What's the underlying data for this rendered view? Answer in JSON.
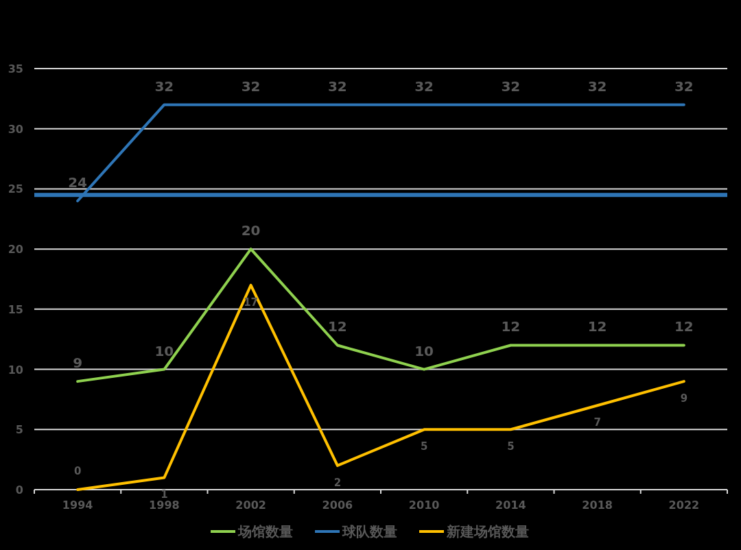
{
  "chart_data": {
    "type": "line",
    "categories": [
      "1994",
      "1998",
      "2002",
      "2006",
      "2010",
      "2014",
      "2018",
      "2022"
    ],
    "series": [
      {
        "name": "场馆数量",
        "color": "#8fd14f",
        "values": [
          9,
          10,
          20,
          12,
          10,
          12,
          12,
          12
        ]
      },
      {
        "name": "球队数量",
        "color": "#2e75b6",
        "values": [
          24,
          32,
          32,
          32,
          32,
          32,
          32,
          32
        ]
      },
      {
        "name": "新建场馆数量",
        "color": "#ffc000",
        "values": [
          0,
          1,
          17,
          2,
          5,
          5,
          7,
          9
        ]
      }
    ],
    "ylim": [
      0,
      35
    ],
    "yticks": [
      0,
      5,
      10,
      15,
      20,
      25,
      30,
      35
    ],
    "ref_lines": [
      {
        "axis": "y",
        "value": 24.5,
        "color": "#2e75b6"
      }
    ],
    "grid": "y",
    "legend": "bottom",
    "data_labels": true,
    "marker": "none",
    "line_style": "solid"
  }
}
